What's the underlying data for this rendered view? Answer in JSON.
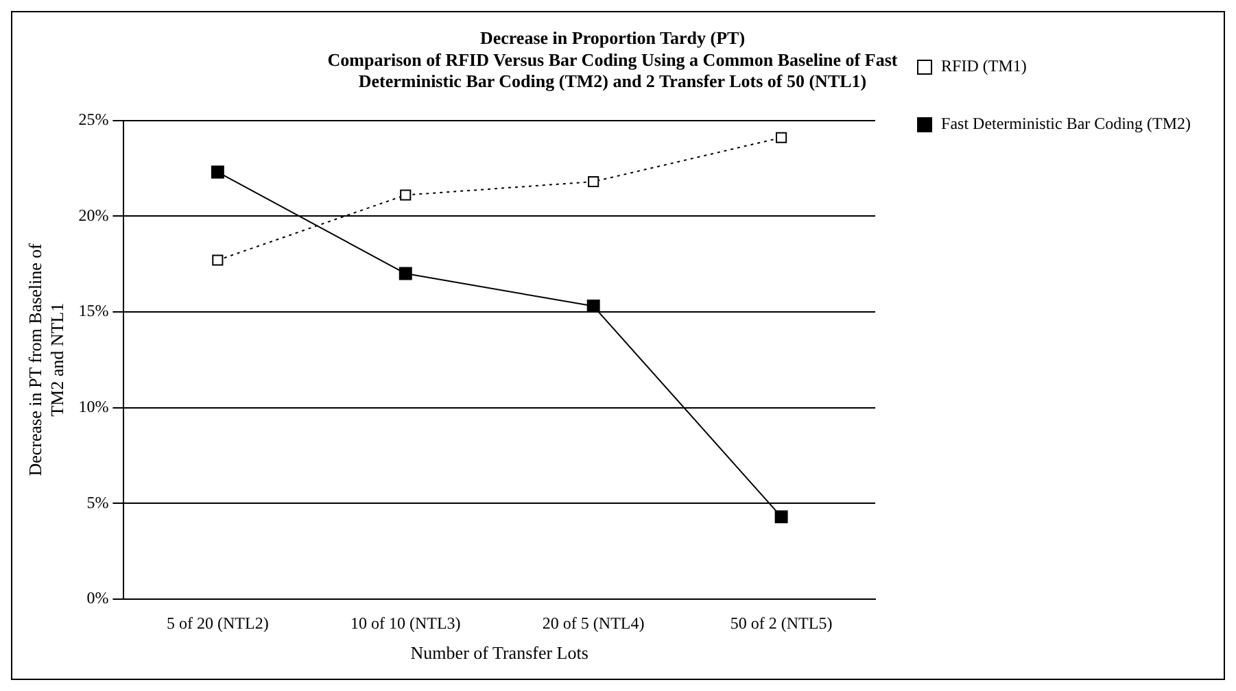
{
  "chart_data": {
    "type": "line",
    "title": "Decrease in Proportion Tardy (PT)\nComparison of RFID Versus Bar Coding Using a Common Baseline of Fast\nDeterministic Bar Coding (TM2) and 2 Transfer Lots of 50 (NTL1)",
    "xlabel": "Number of Transfer Lots",
    "ylabel": "Decrease in PT from Baseline of\nTM2 and NTL1",
    "categories": [
      "5 of 20 (NTL2)",
      "10 of 10 (NTL3)",
      "20 of 5 (NTL4)",
      "50 of 2 (NTL5)"
    ],
    "series": [
      {
        "name": "RFID (TM1)",
        "color": "#000000",
        "values": [
          17.7,
          21.1,
          21.8,
          24.1
        ],
        "line_style": "dotted",
        "marker": "square"
      },
      {
        "name": "Fast Deterministic Bar Coding (TM2)",
        "color": "#000000",
        "values": [
          22.3,
          17.0,
          15.3,
          4.3
        ],
        "line_style": "solid",
        "marker": "square"
      }
    ],
    "ylim": [
      0,
      25
    ],
    "yticks": [
      {
        "value": 0,
        "label": "0%"
      },
      {
        "value": 5,
        "label": "5%"
      },
      {
        "value": 10,
        "label": "10%"
      },
      {
        "value": 15,
        "label": "15%"
      },
      {
        "value": 20,
        "label": "20%"
      },
      {
        "value": 25,
        "label": "25%"
      }
    ],
    "grid": "y",
    "legend": "right"
  }
}
